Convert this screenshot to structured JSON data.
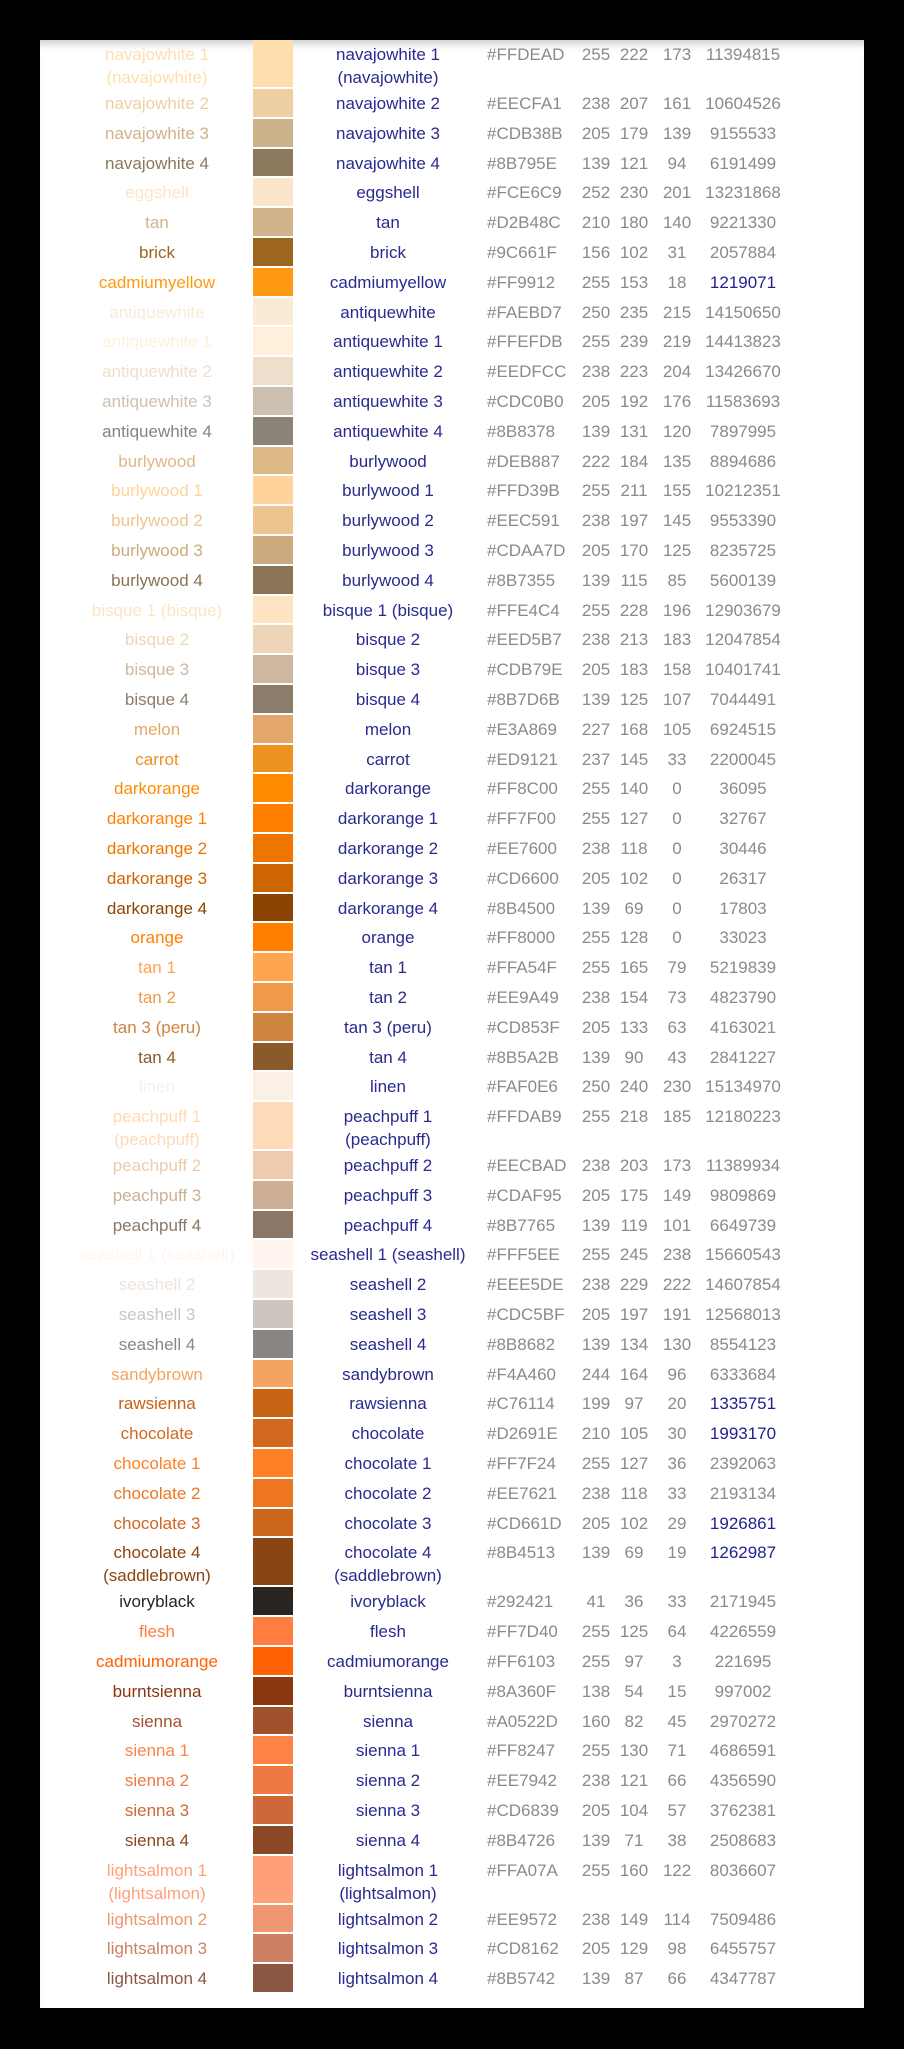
{
  "table": {
    "rows": [
      {
        "name": "navajowhite 1 (navajowhite)",
        "hex": "#FFDEAD",
        "r": 255,
        "g": 222,
        "b": 173,
        "decimal": 11394815
      },
      {
        "name": "navajowhite 2",
        "hex": "#EECFA1",
        "r": 238,
        "g": 207,
        "b": 161,
        "decimal": 10604526
      },
      {
        "name": "navajowhite 3",
        "hex": "#CDB38B",
        "r": 205,
        "g": 179,
        "b": 139,
        "decimal": 9155533
      },
      {
        "name": "navajowhite 4",
        "hex": "#8B795E",
        "r": 139,
        "g": 121,
        "b": 94,
        "decimal": 6191499
      },
      {
        "name": "eggshell",
        "hex": "#FCE6C9",
        "r": 252,
        "g": 230,
        "b": 201,
        "decimal": 13231868
      },
      {
        "name": "tan",
        "hex": "#D2B48C",
        "r": 210,
        "g": 180,
        "b": 140,
        "decimal": 9221330
      },
      {
        "name": "brick",
        "hex": "#9C661F",
        "r": 156,
        "g": 102,
        "b": 31,
        "decimal": 2057884
      },
      {
        "name": "cadmiumyellow",
        "hex": "#FF9912",
        "r": 255,
        "g": 153,
        "b": 18,
        "decimal": 1219071,
        "decimal_color": "#22228f"
      },
      {
        "name": "antiquewhite",
        "hex": "#FAEBD7",
        "r": 250,
        "g": 235,
        "b": 215,
        "decimal": 14150650
      },
      {
        "name": "antiquewhite 1",
        "hex": "#FFEFDB",
        "r": 255,
        "g": 239,
        "b": 219,
        "decimal": 14413823
      },
      {
        "name": "antiquewhite 2",
        "hex": "#EEDFCC",
        "r": 238,
        "g": 223,
        "b": 204,
        "decimal": 13426670
      },
      {
        "name": "antiquewhite 3",
        "hex": "#CDC0B0",
        "r": 205,
        "g": 192,
        "b": 176,
        "decimal": 11583693
      },
      {
        "name": "antiquewhite 4",
        "hex": "#8B8378",
        "r": 139,
        "g": 131,
        "b": 120,
        "decimal": 7897995
      },
      {
        "name": "burlywood",
        "hex": "#DEB887",
        "r": 222,
        "g": 184,
        "b": 135,
        "decimal": 8894686
      },
      {
        "name": "burlywood 1",
        "hex": "#FFD39B",
        "r": 255,
        "g": 211,
        "b": 155,
        "decimal": 10212351
      },
      {
        "name": "burlywood 2",
        "hex": "#EEC591",
        "r": 238,
        "g": 197,
        "b": 145,
        "decimal": 9553390
      },
      {
        "name": "burlywood 3",
        "hex": "#CDAA7D",
        "r": 205,
        "g": 170,
        "b": 125,
        "decimal": 8235725
      },
      {
        "name": "burlywood 4",
        "hex": "#8B7355",
        "r": 139,
        "g": 115,
        "b": 85,
        "decimal": 5600139
      },
      {
        "name": "bisque 1 (bisque)",
        "hex": "#FFE4C4",
        "r": 255,
        "g": 228,
        "b": 196,
        "decimal": 12903679
      },
      {
        "name": "bisque 2",
        "hex": "#EED5B7",
        "r": 238,
        "g": 213,
        "b": 183,
        "decimal": 12047854
      },
      {
        "name": "bisque 3",
        "hex": "#CDB79E",
        "r": 205,
        "g": 183,
        "b": 158,
        "decimal": 10401741
      },
      {
        "name": "bisque 4",
        "hex": "#8B7D6B",
        "r": 139,
        "g": 125,
        "b": 107,
        "decimal": 7044491
      },
      {
        "name": "melon",
        "hex": "#E3A869",
        "r": 227,
        "g": 168,
        "b": 105,
        "decimal": 6924515
      },
      {
        "name": "carrot",
        "hex": "#ED9121",
        "r": 237,
        "g": 145,
        "b": 33,
        "decimal": 2200045
      },
      {
        "name": "darkorange",
        "hex": "#FF8C00",
        "r": 255,
        "g": 140,
        "b": 0,
        "decimal": 36095
      },
      {
        "name": "darkorange 1",
        "hex": "#FF7F00",
        "r": 255,
        "g": 127,
        "b": 0,
        "decimal": 32767
      },
      {
        "name": "darkorange 2",
        "hex": "#EE7600",
        "r": 238,
        "g": 118,
        "b": 0,
        "decimal": 30446
      },
      {
        "name": "darkorange 3",
        "hex": "#CD6600",
        "r": 205,
        "g": 102,
        "b": 0,
        "decimal": 26317
      },
      {
        "name": "darkorange 4",
        "hex": "#8B4500",
        "r": 139,
        "g": 69,
        "b": 0,
        "decimal": 17803
      },
      {
        "name": "orange",
        "hex": "#FF8000",
        "r": 255,
        "g": 128,
        "b": 0,
        "decimal": 33023
      },
      {
        "name": "tan 1",
        "hex": "#FFA54F",
        "r": 255,
        "g": 165,
        "b": 79,
        "decimal": 5219839
      },
      {
        "name": "tan 2",
        "hex": "#EE9A49",
        "r": 238,
        "g": 154,
        "b": 73,
        "decimal": 4823790
      },
      {
        "name": "tan 3 (peru)",
        "hex": "#CD853F",
        "r": 205,
        "g": 133,
        "b": 63,
        "decimal": 4163021
      },
      {
        "name": "tan 4",
        "hex": "#8B5A2B",
        "r": 139,
        "g": 90,
        "b": 43,
        "decimal": 2841227
      },
      {
        "name": "linen",
        "hex": "#FAF0E6",
        "r": 250,
        "g": 240,
        "b": 230,
        "decimal": 15134970
      },
      {
        "name": "peachpuff 1 (peachpuff)",
        "hex": "#FFDAB9",
        "r": 255,
        "g": 218,
        "b": 185,
        "decimal": 12180223
      },
      {
        "name": "peachpuff 2",
        "hex": "#EECBAD",
        "r": 238,
        "g": 203,
        "b": 173,
        "decimal": 11389934
      },
      {
        "name": "peachpuff 3",
        "hex": "#CDAF95",
        "r": 205,
        "g": 175,
        "b": 149,
        "decimal": 9809869
      },
      {
        "name": "peachpuff 4",
        "hex": "#8B7765",
        "r": 139,
        "g": 119,
        "b": 101,
        "decimal": 6649739
      },
      {
        "name": "seashell 1 (seashell)",
        "hex": "#FFF5EE",
        "r": 255,
        "g": 245,
        "b": 238,
        "decimal": 15660543
      },
      {
        "name": "seashell 2",
        "hex": "#EEE5DE",
        "r": 238,
        "g": 229,
        "b": 222,
        "decimal": 14607854
      },
      {
        "name": "seashell 3",
        "hex": "#CDC5BF",
        "r": 205,
        "g": 197,
        "b": 191,
        "decimal": 12568013
      },
      {
        "name": "seashell 4",
        "hex": "#8B8682",
        "r": 139,
        "g": 134,
        "b": 130,
        "decimal": 8554123
      },
      {
        "name": "sandybrown",
        "hex": "#F4A460",
        "r": 244,
        "g": 164,
        "b": 96,
        "decimal": 6333684
      },
      {
        "name": "rawsienna",
        "hex": "#C76114",
        "r": 199,
        "g": 97,
        "b": 20,
        "decimal": 1335751,
        "decimal_color": "#22228f"
      },
      {
        "name": "chocolate",
        "hex": "#D2691E",
        "r": 210,
        "g": 105,
        "b": 30,
        "decimal": 1993170,
        "decimal_color": "#22228f"
      },
      {
        "name": "chocolate 1",
        "hex": "#FF7F24",
        "r": 255,
        "g": 127,
        "b": 36,
        "decimal": 2392063
      },
      {
        "name": "chocolate 2",
        "hex": "#EE7621",
        "r": 238,
        "g": 118,
        "b": 33,
        "decimal": 2193134
      },
      {
        "name": "chocolate 3",
        "hex": "#CD661D",
        "r": 205,
        "g": 102,
        "b": 29,
        "decimal": 1926861,
        "decimal_color": "#22228f"
      },
      {
        "name": "chocolate 4 (saddlebrown)",
        "hex": "#8B4513",
        "r": 139,
        "g": 69,
        "b": 19,
        "decimal": 1262987,
        "decimal_color": "#22228f"
      },
      {
        "name": "ivoryblack",
        "hex": "#292421",
        "r": 41,
        "g": 36,
        "b": 33,
        "decimal": 2171945
      },
      {
        "name": "flesh",
        "hex": "#FF7D40",
        "r": 255,
        "g": 125,
        "b": 64,
        "decimal": 4226559
      },
      {
        "name": "cadmiumorange",
        "hex": "#FF6103",
        "r": 255,
        "g": 97,
        "b": 3,
        "decimal": 221695
      },
      {
        "name": "burntsienna",
        "hex": "#8A360F",
        "r": 138,
        "g": 54,
        "b": 15,
        "decimal": 997002
      },
      {
        "name": "sienna",
        "hex": "#A0522D",
        "r": 160,
        "g": 82,
        "b": 45,
        "decimal": 2970272
      },
      {
        "name": "sienna 1",
        "hex": "#FF8247",
        "r": 255,
        "g": 130,
        "b": 71,
        "decimal": 4686591
      },
      {
        "name": "sienna 2",
        "hex": "#EE7942",
        "r": 238,
        "g": 121,
        "b": 66,
        "decimal": 4356590
      },
      {
        "name": "sienna 3",
        "hex": "#CD6839",
        "r": 205,
        "g": 104,
        "b": 57,
        "decimal": 3762381
      },
      {
        "name": "sienna 4",
        "hex": "#8B4726",
        "r": 139,
        "g": 71,
        "b": 38,
        "decimal": 2508683
      },
      {
        "name": "lightsalmon 1 (lightsalmon)",
        "hex": "#FFA07A",
        "r": 255,
        "g": 160,
        "b": 122,
        "decimal": 8036607
      },
      {
        "name": "lightsalmon 2",
        "hex": "#EE9572",
        "r": 238,
        "g": 149,
        "b": 114,
        "decimal": 7509486
      },
      {
        "name": "lightsalmon 3",
        "hex": "#CD8162",
        "r": 205,
        "g": 129,
        "b": 98,
        "decimal": 6455757
      },
      {
        "name": "lightsalmon 4",
        "hex": "#8B5742",
        "r": 139,
        "g": 87,
        "b": 66,
        "decimal": 4347787
      }
    ]
  }
}
